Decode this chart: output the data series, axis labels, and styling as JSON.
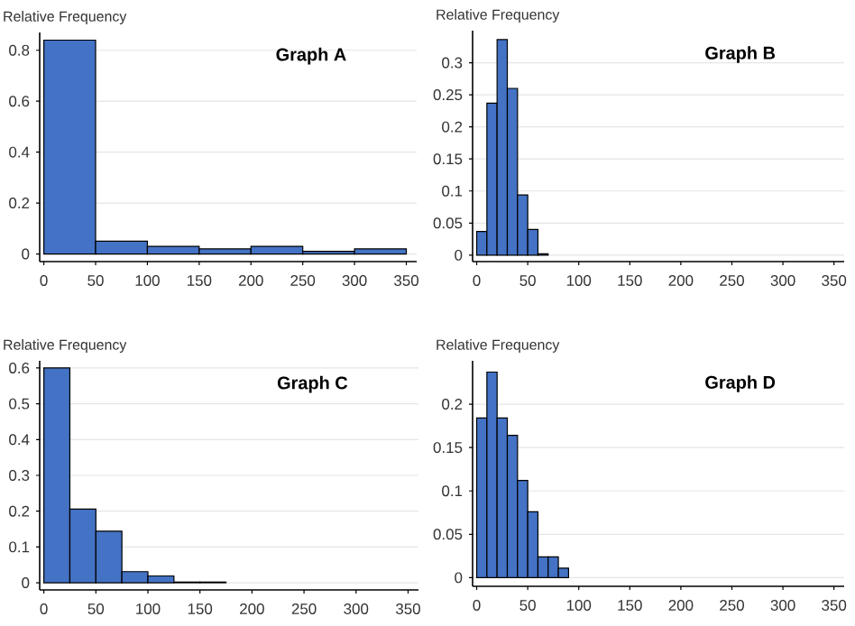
{
  "chart_data": [
    {
      "type": "histogram",
      "title": "Graph A",
      "ylabel": "Relative Frequency",
      "bins": [
        0,
        50,
        100,
        150,
        200,
        250,
        300,
        350
      ],
      "values": [
        0.84,
        0.05,
        0.03,
        0.02,
        0.03,
        0.01,
        0.02
      ],
      "color": "#4472c4",
      "xlim": [
        -4,
        360
      ],
      "xticks": [
        0,
        50,
        100,
        150,
        200,
        250,
        300,
        350
      ],
      "ylim": [
        -0.03,
        0.87
      ],
      "yticks": [
        0,
        0.2,
        0.4,
        0.6,
        0.8
      ],
      "grid": "y"
    },
    {
      "type": "histogram",
      "title": "Graph B",
      "ylabel": "Relative Frequency",
      "bins": [
        0,
        10,
        20,
        30,
        40,
        50,
        60,
        70
      ],
      "values": [
        0.037,
        0.237,
        0.336,
        0.26,
        0.094,
        0.04,
        0.002
      ],
      "color": "#4472c4",
      "xlim": [
        -4,
        360
      ],
      "xticks": [
        0,
        50,
        100,
        150,
        200,
        250,
        300,
        350
      ],
      "ylim": [
        -0.01,
        0.35
      ],
      "yticks": [
        0,
        0.05,
        0.1,
        0.15,
        0.2,
        0.25,
        0.3
      ],
      "grid": "y"
    },
    {
      "type": "histogram",
      "title": "Graph C",
      "ylabel": "Relative Frequency",
      "bins": [
        0,
        25,
        50,
        75,
        100,
        125,
        150,
        175
      ],
      "values": [
        0.6,
        0.206,
        0.144,
        0.031,
        0.019,
        0.002,
        0.002
      ],
      "color": "#4472c4",
      "xlim": [
        -4,
        360
      ],
      "xticks": [
        0,
        50,
        100,
        150,
        200,
        250,
        300,
        350
      ],
      "ylim": [
        -0.02,
        0.62
      ],
      "yticks": [
        0,
        0.1,
        0.2,
        0.3,
        0.4,
        0.5,
        0.6
      ],
      "grid": "y"
    },
    {
      "type": "histogram",
      "title": "Graph D",
      "ylabel": "Relative Frequency",
      "bins": [
        0,
        10,
        20,
        30,
        40,
        50,
        60,
        70,
        80,
        90
      ],
      "values": [
        0.184,
        0.237,
        0.184,
        0.164,
        0.112,
        0.076,
        0.024,
        0.024,
        0.011
      ],
      "color": "#4472c4",
      "xlim": [
        -4,
        360
      ],
      "xticks": [
        0,
        50,
        100,
        150,
        200,
        250,
        300,
        350
      ],
      "ylim": [
        -0.01,
        0.25
      ],
      "yticks": [
        0,
        0.05,
        0.1,
        0.15,
        0.2
      ],
      "grid": "y"
    }
  ]
}
